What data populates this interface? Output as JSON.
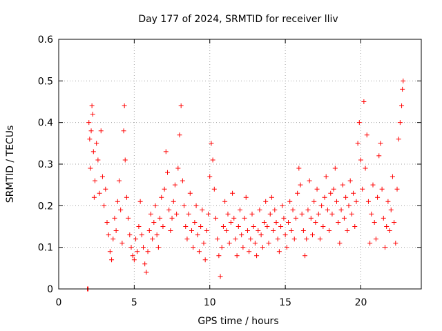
{
  "chart_data": {
    "type": "scatter",
    "title": "Day 177 of 2024, SRMTID for receiver lliv",
    "xlabel": "GPS time / hours",
    "ylabel": "SRMTID / TECUs",
    "xlim": [
      0,
      24
    ],
    "ylim": [
      0,
      0.6
    ],
    "xticks": [
      0,
      5,
      10,
      15,
      20
    ],
    "yticks": [
      0,
      0.1,
      0.2,
      0.3,
      0.4,
      0.5,
      0.6
    ],
    "xtick_labels": [
      "0",
      "5",
      "10",
      "15",
      "20"
    ],
    "ytick_labels": [
      "0",
      "0.1",
      "0.2",
      "0.3",
      "0.4",
      "0.5",
      "0.6"
    ],
    "grid": true,
    "marker": "+",
    "color": "#ff0000",
    "series": [
      {
        "name": "SRMTID",
        "points": [
          [
            1.9,
            0.0
          ],
          [
            1.95,
            0.0
          ],
          [
            2.0,
            0.4
          ],
          [
            2.05,
            0.36
          ],
          [
            2.1,
            0.29
          ],
          [
            2.15,
            0.38
          ],
          [
            2.2,
            0.44
          ],
          [
            2.25,
            0.42
          ],
          [
            2.3,
            0.33
          ],
          [
            2.35,
            0.22
          ],
          [
            2.4,
            0.26
          ],
          [
            2.5,
            0.35
          ],
          [
            2.6,
            0.31
          ],
          [
            2.7,
            0.23
          ],
          [
            2.8,
            0.38
          ],
          [
            2.9,
            0.27
          ],
          [
            3.0,
            0.2
          ],
          [
            3.1,
            0.24
          ],
          [
            3.2,
            0.16
          ],
          [
            3.3,
            0.13
          ],
          [
            3.4,
            0.09
          ],
          [
            3.5,
            0.07
          ],
          [
            3.6,
            0.12
          ],
          [
            3.7,
            0.17
          ],
          [
            3.8,
            0.14
          ],
          [
            3.9,
            0.21
          ],
          [
            4.0,
            0.26
          ],
          [
            4.1,
            0.19
          ],
          [
            4.2,
            0.11
          ],
          [
            4.3,
            0.38
          ],
          [
            4.35,
            0.44
          ],
          [
            4.4,
            0.31
          ],
          [
            4.5,
            0.22
          ],
          [
            4.6,
            0.17
          ],
          [
            4.7,
            0.13
          ],
          [
            4.8,
            0.1
          ],
          [
            4.9,
            0.08
          ],
          [
            5.0,
            0.07
          ],
          [
            5.1,
            0.12
          ],
          [
            5.2,
            0.09
          ],
          [
            5.3,
            0.15
          ],
          [
            5.4,
            0.21
          ],
          [
            5.5,
            0.13
          ],
          [
            5.6,
            0.1
          ],
          [
            5.7,
            0.06
          ],
          [
            5.8,
            0.04
          ],
          [
            5.9,
            0.09
          ],
          [
            6.0,
            0.14
          ],
          [
            6.1,
            0.18
          ],
          [
            6.2,
            0.12
          ],
          [
            6.3,
            0.16
          ],
          [
            6.4,
            0.2
          ],
          [
            6.5,
            0.13
          ],
          [
            6.6,
            0.1
          ],
          [
            6.7,
            0.17
          ],
          [
            6.8,
            0.22
          ],
          [
            6.9,
            0.15
          ],
          [
            7.0,
            0.24
          ],
          [
            7.1,
            0.33
          ],
          [
            7.2,
            0.28
          ],
          [
            7.3,
            0.19
          ],
          [
            7.4,
            0.14
          ],
          [
            7.5,
            0.17
          ],
          [
            7.6,
            0.21
          ],
          [
            7.7,
            0.25
          ],
          [
            7.8,
            0.18
          ],
          [
            7.9,
            0.29
          ],
          [
            8.0,
            0.37
          ],
          [
            8.1,
            0.44
          ],
          [
            8.2,
            0.26
          ],
          [
            8.3,
            0.2
          ],
          [
            8.4,
            0.15
          ],
          [
            8.5,
            0.12
          ],
          [
            8.6,
            0.18
          ],
          [
            8.7,
            0.23
          ],
          [
            8.8,
            0.14
          ],
          [
            8.9,
            0.1
          ],
          [
            9.0,
            0.16
          ],
          [
            9.1,
            0.2
          ],
          [
            9.2,
            0.13
          ],
          [
            9.3,
            0.09
          ],
          [
            9.4,
            0.15
          ],
          [
            9.5,
            0.19
          ],
          [
            9.6,
            0.11
          ],
          [
            9.7,
            0.07
          ],
          [
            9.8,
            0.14
          ],
          [
            9.9,
            0.18
          ],
          [
            10.0,
            0.27
          ],
          [
            10.1,
            0.35
          ],
          [
            10.2,
            0.31
          ],
          [
            10.3,
            0.24
          ],
          [
            10.4,
            0.17
          ],
          [
            10.5,
            0.12
          ],
          [
            10.6,
            0.08
          ],
          [
            10.7,
            0.03
          ],
          [
            10.8,
            0.1
          ],
          [
            10.9,
            0.15
          ],
          [
            11.0,
            0.21
          ],
          [
            11.1,
            0.14
          ],
          [
            11.2,
            0.18
          ],
          [
            11.3,
            0.11
          ],
          [
            11.4,
            0.16
          ],
          [
            11.5,
            0.23
          ],
          [
            11.6,
            0.17
          ],
          [
            11.7,
            0.12
          ],
          [
            11.8,
            0.08
          ],
          [
            11.9,
            0.15
          ],
          [
            12.0,
            0.19
          ],
          [
            12.1,
            0.13
          ],
          [
            12.2,
            0.1
          ],
          [
            12.3,
            0.17
          ],
          [
            12.4,
            0.22
          ],
          [
            12.5,
            0.14
          ],
          [
            12.6,
            0.09
          ],
          [
            12.7,
            0.12
          ],
          [
            12.8,
            0.18
          ],
          [
            12.9,
            0.15
          ],
          [
            13.0,
            0.11
          ],
          [
            13.1,
            0.08
          ],
          [
            13.2,
            0.14
          ],
          [
            13.3,
            0.19
          ],
          [
            13.4,
            0.13
          ],
          [
            13.5,
            0.1
          ],
          [
            13.6,
            0.16
          ],
          [
            13.7,
            0.21
          ],
          [
            13.8,
            0.15
          ],
          [
            13.9,
            0.11
          ],
          [
            14.0,
            0.18
          ],
          [
            14.1,
            0.22
          ],
          [
            14.2,
            0.14
          ],
          [
            14.3,
            0.19
          ],
          [
            14.4,
            0.16
          ],
          [
            14.5,
            0.12
          ],
          [
            14.6,
            0.09
          ],
          [
            14.7,
            0.15
          ],
          [
            14.8,
            0.2
          ],
          [
            14.9,
            0.17
          ],
          [
            15.0,
            0.13
          ],
          [
            15.1,
            0.1
          ],
          [
            15.2,
            0.16
          ],
          [
            15.3,
            0.21
          ],
          [
            15.4,
            0.14
          ],
          [
            15.5,
            0.19
          ],
          [
            15.6,
            0.12
          ],
          [
            15.7,
            0.17
          ],
          [
            15.8,
            0.23
          ],
          [
            15.9,
            0.29
          ],
          [
            16.0,
            0.25
          ],
          [
            16.1,
            0.18
          ],
          [
            16.2,
            0.14
          ],
          [
            16.3,
            0.08
          ],
          [
            16.4,
            0.12
          ],
          [
            16.5,
            0.19
          ],
          [
            16.6,
            0.26
          ],
          [
            16.7,
            0.17
          ],
          [
            16.8,
            0.13
          ],
          [
            16.9,
            0.21
          ],
          [
            17.0,
            0.16
          ],
          [
            17.1,
            0.24
          ],
          [
            17.2,
            0.18
          ],
          [
            17.3,
            0.12
          ],
          [
            17.4,
            0.2
          ],
          [
            17.5,
            0.15
          ],
          [
            17.6,
            0.22
          ],
          [
            17.7,
            0.27
          ],
          [
            17.8,
            0.19
          ],
          [
            17.9,
            0.14
          ],
          [
            18.0,
            0.23
          ],
          [
            18.1,
            0.18
          ],
          [
            18.2,
            0.24
          ],
          [
            18.3,
            0.29
          ],
          [
            18.4,
            0.21
          ],
          [
            18.5,
            0.16
          ],
          [
            18.6,
            0.11
          ],
          [
            18.7,
            0.19
          ],
          [
            18.8,
            0.25
          ],
          [
            18.9,
            0.17
          ],
          [
            19.0,
            0.22
          ],
          [
            19.1,
            0.14
          ],
          [
            19.2,
            0.2
          ],
          [
            19.3,
            0.26
          ],
          [
            19.4,
            0.18
          ],
          [
            19.5,
            0.23
          ],
          [
            19.6,
            0.15
          ],
          [
            19.7,
            0.21
          ],
          [
            19.8,
            0.35
          ],
          [
            19.9,
            0.4
          ],
          [
            20.0,
            0.31
          ],
          [
            20.1,
            0.24
          ],
          [
            20.2,
            0.45
          ],
          [
            20.3,
            0.29
          ],
          [
            20.4,
            0.37
          ],
          [
            20.5,
            0.21
          ],
          [
            20.6,
            0.11
          ],
          [
            20.7,
            0.18
          ],
          [
            20.8,
            0.25
          ],
          [
            20.9,
            0.16
          ],
          [
            21.0,
            0.12
          ],
          [
            21.1,
            0.22
          ],
          [
            21.2,
            0.32
          ],
          [
            21.3,
            0.35
          ],
          [
            21.4,
            0.24
          ],
          [
            21.5,
            0.17
          ],
          [
            21.6,
            0.1
          ],
          [
            21.7,
            0.15
          ],
          [
            21.8,
            0.21
          ],
          [
            21.9,
            0.14
          ],
          [
            22.0,
            0.19
          ],
          [
            22.1,
            0.27
          ],
          [
            22.2,
            0.16
          ],
          [
            22.3,
            0.11
          ],
          [
            22.4,
            0.24
          ],
          [
            22.5,
            0.36
          ],
          [
            22.6,
            0.4
          ],
          [
            22.7,
            0.44
          ],
          [
            22.75,
            0.48
          ],
          [
            22.8,
            0.5
          ]
        ]
      }
    ]
  }
}
